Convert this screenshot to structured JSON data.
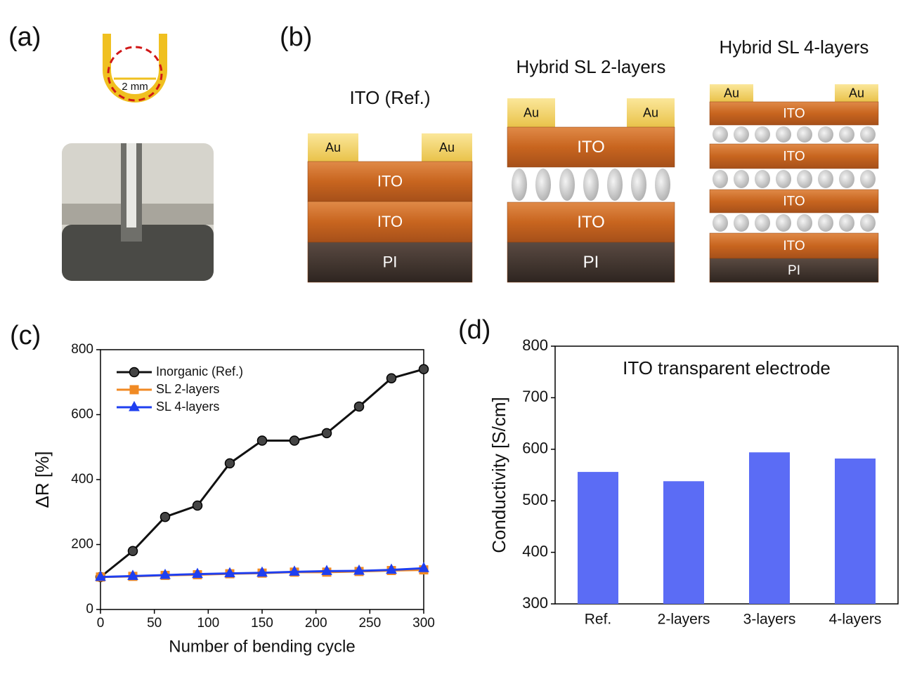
{
  "figure": {
    "panel_a": {
      "label": "(a)",
      "dimension": "2 mm"
    },
    "panel_b": {
      "label": "(b)",
      "stacks": [
        {
          "title": "ITO (Ref.)",
          "contacts": [
            "Au",
            "Au"
          ],
          "layers": [
            "ITO",
            "ITO",
            "PI"
          ]
        },
        {
          "title": "Hybrid SL 2-layers",
          "contacts": [
            "Au",
            "Au"
          ],
          "layers": [
            "ITO",
            "ITO",
            "PI"
          ]
        },
        {
          "title": "Hybrid SL 4-layers",
          "contacts": [
            "Au",
            "Au"
          ],
          "layers": [
            "ITO",
            "ITO",
            "ITO",
            "ITO",
            "PI"
          ]
        }
      ]
    }
  },
  "chart_data": [
    {
      "type": "line",
      "panel_label": "(c)",
      "x_label": "Number of bending cycle",
      "y_label": "ΔR [%]",
      "x": [
        0,
        30,
        60,
        90,
        120,
        150,
        180,
        210,
        240,
        270,
        300
      ],
      "series": [
        {
          "name": "Inorganic (Ref.)",
          "color": "#111111",
          "marker": "circle",
          "values": [
            100,
            180,
            285,
            320,
            450,
            520,
            520,
            543,
            625,
            712,
            740
          ]
        },
        {
          "name": "SL 2-layers",
          "color": "#f08a24",
          "marker": "square",
          "values": [
            100,
            102,
            105,
            107,
            110,
            112,
            115,
            115,
            117,
            120,
            122
          ]
        },
        {
          "name": "SL 4-layers",
          "color": "#1f3ff0",
          "marker": "triangle",
          "values": [
            100,
            103,
            106,
            109,
            111,
            113,
            116,
            118,
            119,
            122,
            127
          ]
        }
      ],
      "xlim": [
        0,
        300
      ],
      "xticks": [
        0,
        50,
        100,
        150,
        200,
        250,
        300
      ],
      "ylim": [
        0,
        800
      ],
      "yticks": [
        0,
        200,
        400,
        600,
        800
      ],
      "legend": "upper-left"
    },
    {
      "type": "bar",
      "panel_label": "(d)",
      "title": "ITO transparent electrode",
      "y_label": "Conductivity [S/cm]",
      "categories": [
        "Ref.",
        "2-layers",
        "3-layers",
        "4-layers"
      ],
      "values": [
        556,
        538,
        594,
        582
      ],
      "color": "#5b6cf5",
      "ylim": [
        300,
        800
      ],
      "yticks": [
        300,
        400,
        500,
        600,
        700,
        800
      ]
    }
  ]
}
